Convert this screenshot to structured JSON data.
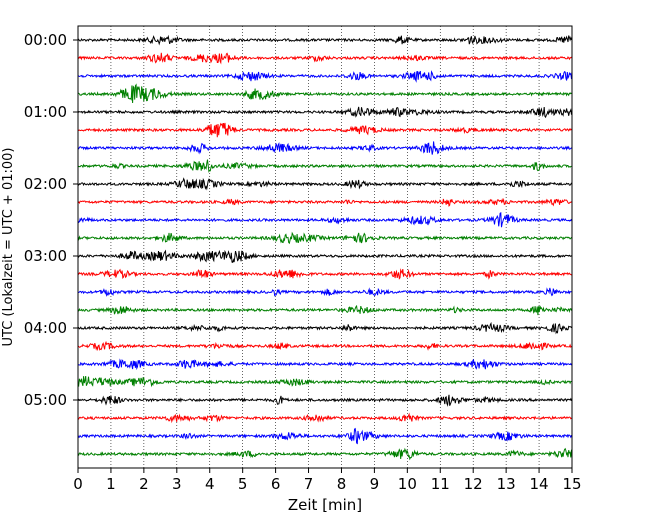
{
  "chart_data": {
    "type": "line",
    "title": "",
    "xlabel": "Zeit  [min]",
    "ylabel": "UTC (Lokalzeit = UTC + 01:00)",
    "xlim": [
      0,
      15
    ],
    "x_ticks": [
      0,
      1,
      2,
      3,
      4,
      5,
      6,
      7,
      8,
      9,
      10,
      11,
      12,
      13,
      14,
      15
    ],
    "y_tick_labels": [
      "00:00",
      "01:00",
      "02:00",
      "03:00",
      "04:00",
      "05:00"
    ],
    "trace_interval_min": 15,
    "trace_count": 24,
    "trace_colors": [
      "#000000",
      "#ff0000",
      "#0000ff",
      "#008000"
    ],
    "grid": "vertical dotted"
  }
}
